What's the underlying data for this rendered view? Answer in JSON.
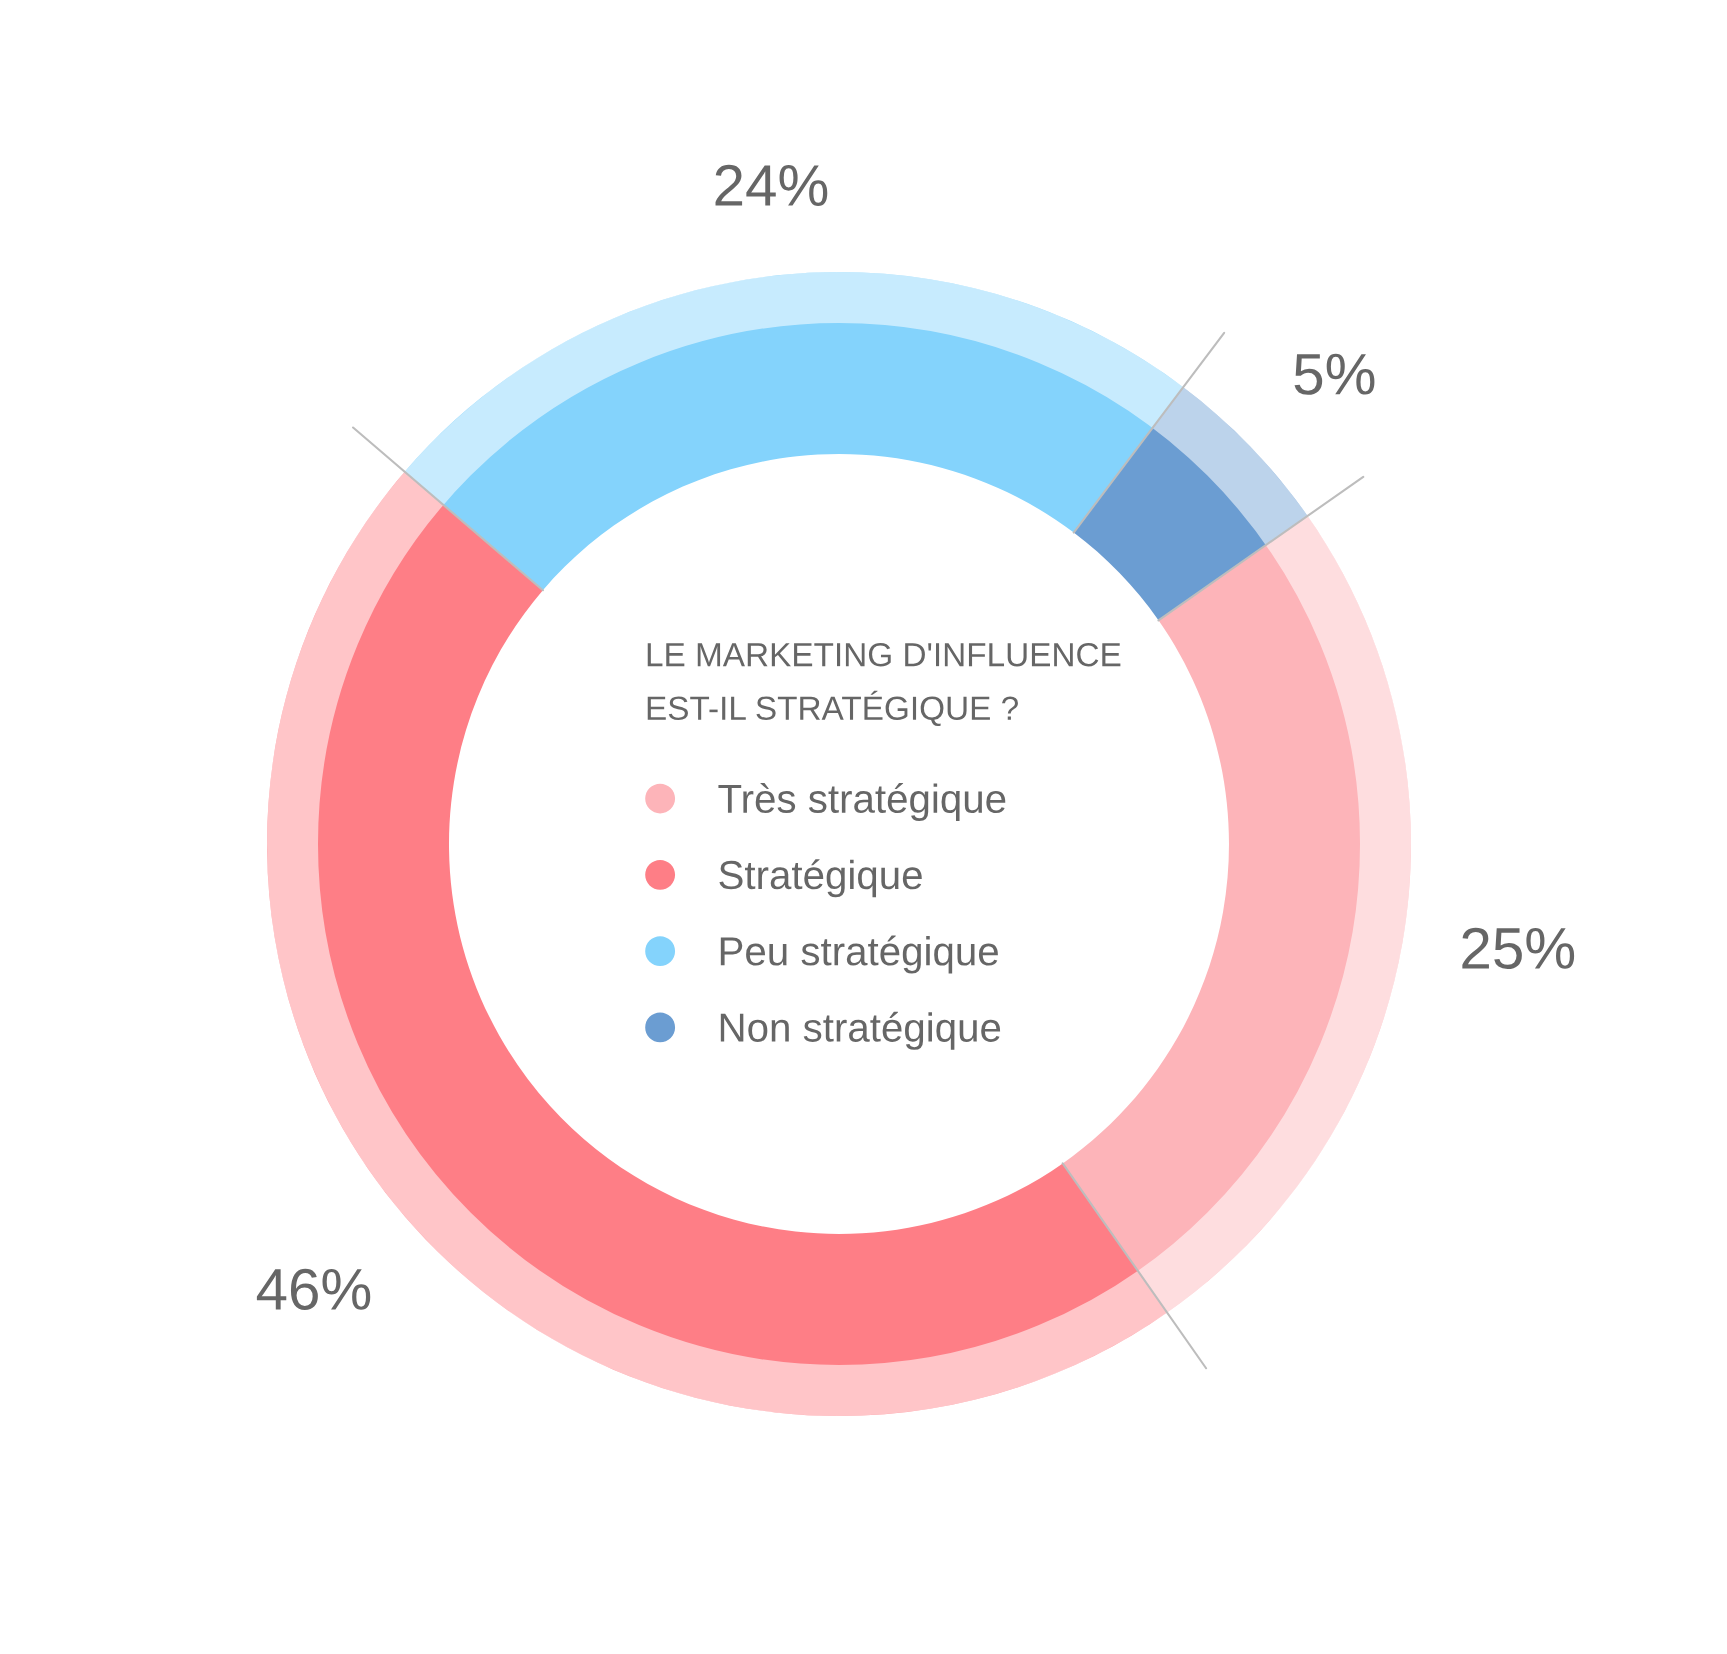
{
  "chart_data": {
    "type": "donut",
    "title": "LE MARKETING D'INFLUENCE\nEST-IL STRATÉGIQUE ?",
    "categories": [
      "Très stratégique",
      "Stratégique",
      "Peu stratégique",
      "Non stratégique"
    ],
    "values": [
      25,
      46,
      24,
      5
    ],
    "colors": [
      "#fdb4b9",
      "#fe7e86",
      "#84d3fc",
      "#6b9dd2"
    ],
    "value_labels": [
      "25%",
      "46%",
      "24%",
      "5%"
    ],
    "legend": "center"
  }
}
